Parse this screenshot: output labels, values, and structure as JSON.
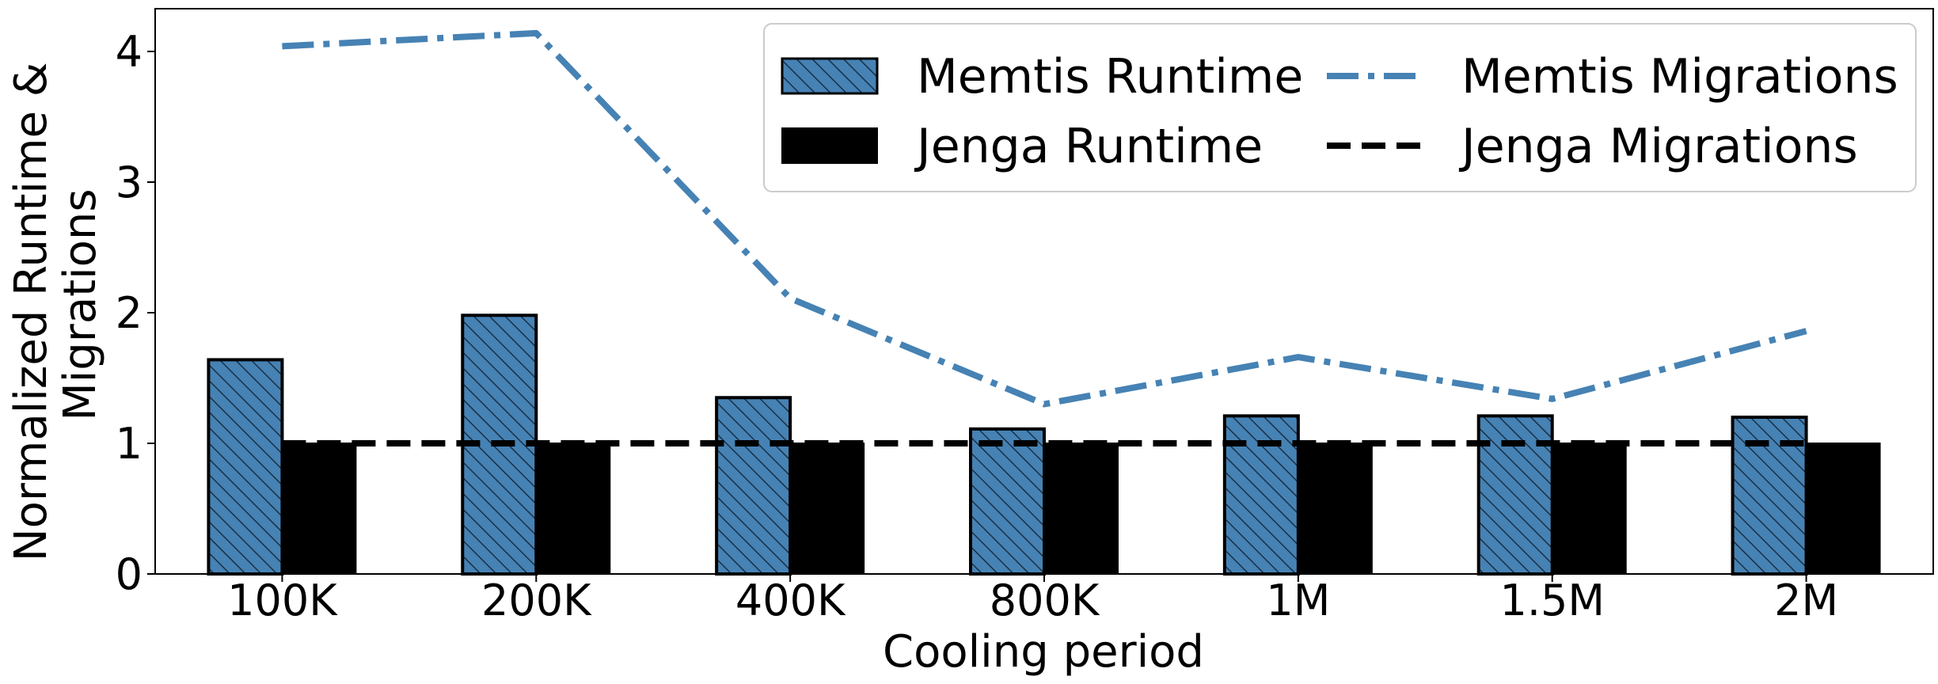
{
  "chart_data": {
    "type": "bar",
    "title": "",
    "xlabel": "Cooling period",
    "ylabel_lines": [
      "Normalized Runtime &",
      "Migrations"
    ],
    "categories": [
      "100K",
      "200K",
      "400K",
      "800K",
      "1M",
      "1.5M",
      "2M"
    ],
    "ylim": [
      0,
      4.33
    ],
    "yticks": [
      "0",
      "1",
      "2",
      "3",
      "4"
    ],
    "grid": false,
    "legend_position": "top-right",
    "series": [
      {
        "name": "Memtis Runtime",
        "kind": "bar",
        "color": "#4682b4",
        "hatch": true,
        "values": [
          1.64,
          1.98,
          1.35,
          1.11,
          1.21,
          1.21,
          1.2
        ]
      },
      {
        "name": "Jenga Runtime",
        "kind": "bar",
        "color": "#000000",
        "hatch": false,
        "values": [
          1.0,
          1.0,
          1.0,
          1.0,
          1.0,
          1.0,
          1.0
        ]
      },
      {
        "name": "Memtis Migrations",
        "kind": "line",
        "style": "dash-dot",
        "color": "#4682b4",
        "values": [
          4.04,
          4.14,
          2.11,
          1.3,
          1.66,
          1.34,
          1.86
        ]
      },
      {
        "name": "Jenga Migrations",
        "kind": "line",
        "style": "dashed",
        "color": "#000000",
        "values": [
          1.0,
          1.0,
          1.0,
          1.0,
          1.0,
          1.0,
          1.0
        ]
      }
    ]
  }
}
